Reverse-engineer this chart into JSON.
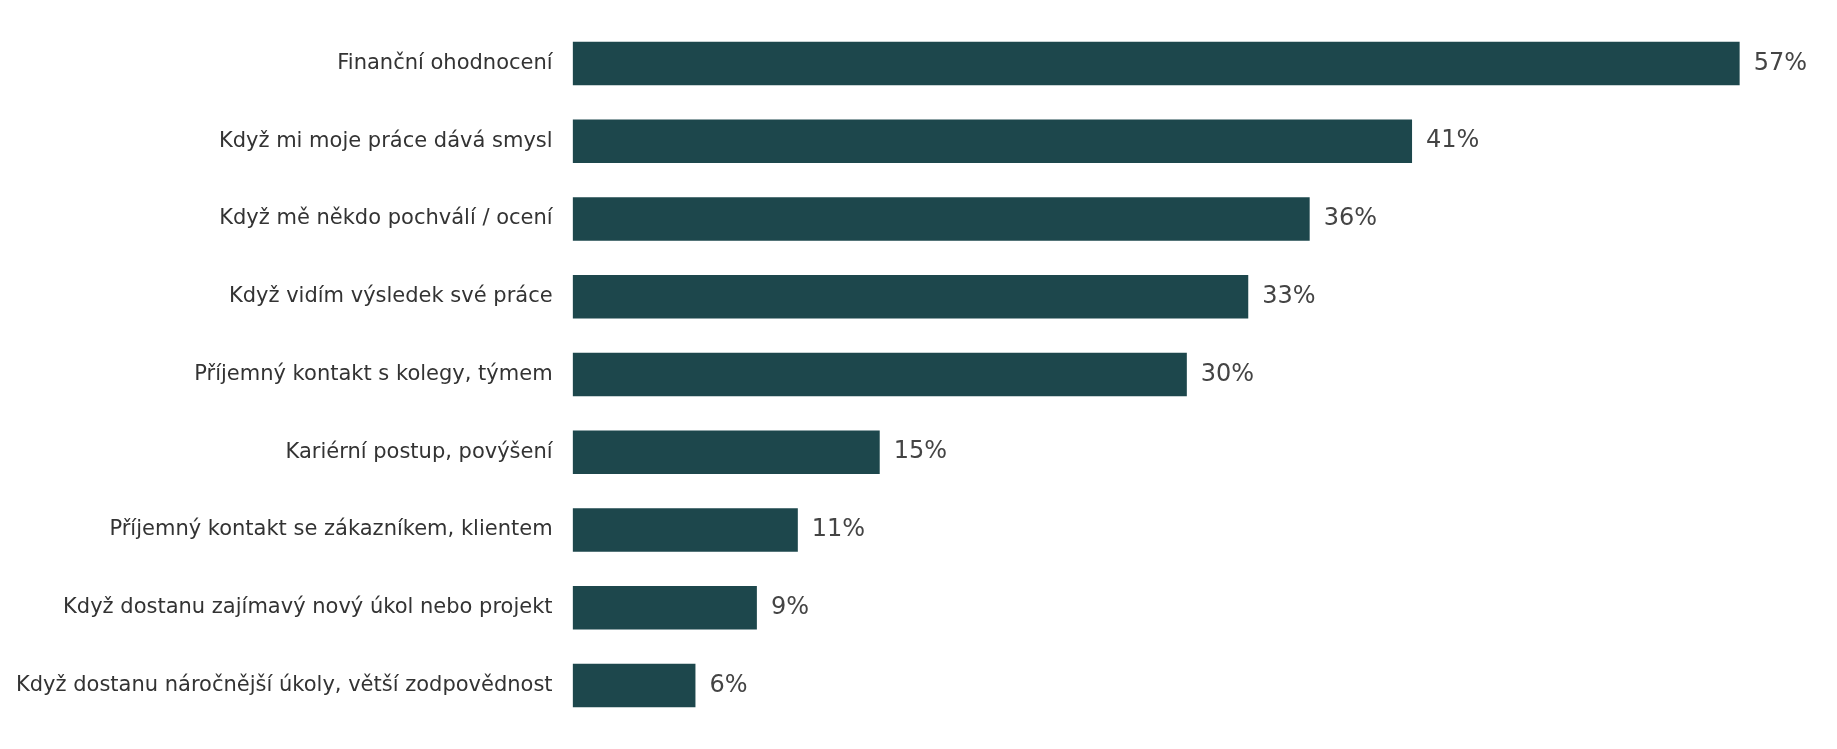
{
  "chart_data": {
    "type": "bar",
    "orientation": "horizontal",
    "categories": [
      "Finanční ohodnocení",
      "Když mi moje práce dává smysl",
      "Když mě někdo pochválí / ocení",
      "Když vidím výsledek své práce",
      "Příjemný kontakt s kolegy, týmem",
      "Kariérní postup, povýšení",
      "Příjemný kontakt se zákazníkem, klientem",
      "Když dostanu zajímavý nový úkol nebo projekt",
      "Když dostanu náročnější úkoly, větší zodpovědnost"
    ],
    "values": [
      57,
      41,
      36,
      33,
      30,
      15,
      11,
      9,
      6
    ],
    "value_labels": [
      "57%",
      "41%",
      "36%",
      "33%",
      "30%",
      "15%",
      "11%",
      "9%",
      "6%"
    ],
    "color": "#1d474c",
    "legend": false,
    "tick_labels": "y"
  }
}
